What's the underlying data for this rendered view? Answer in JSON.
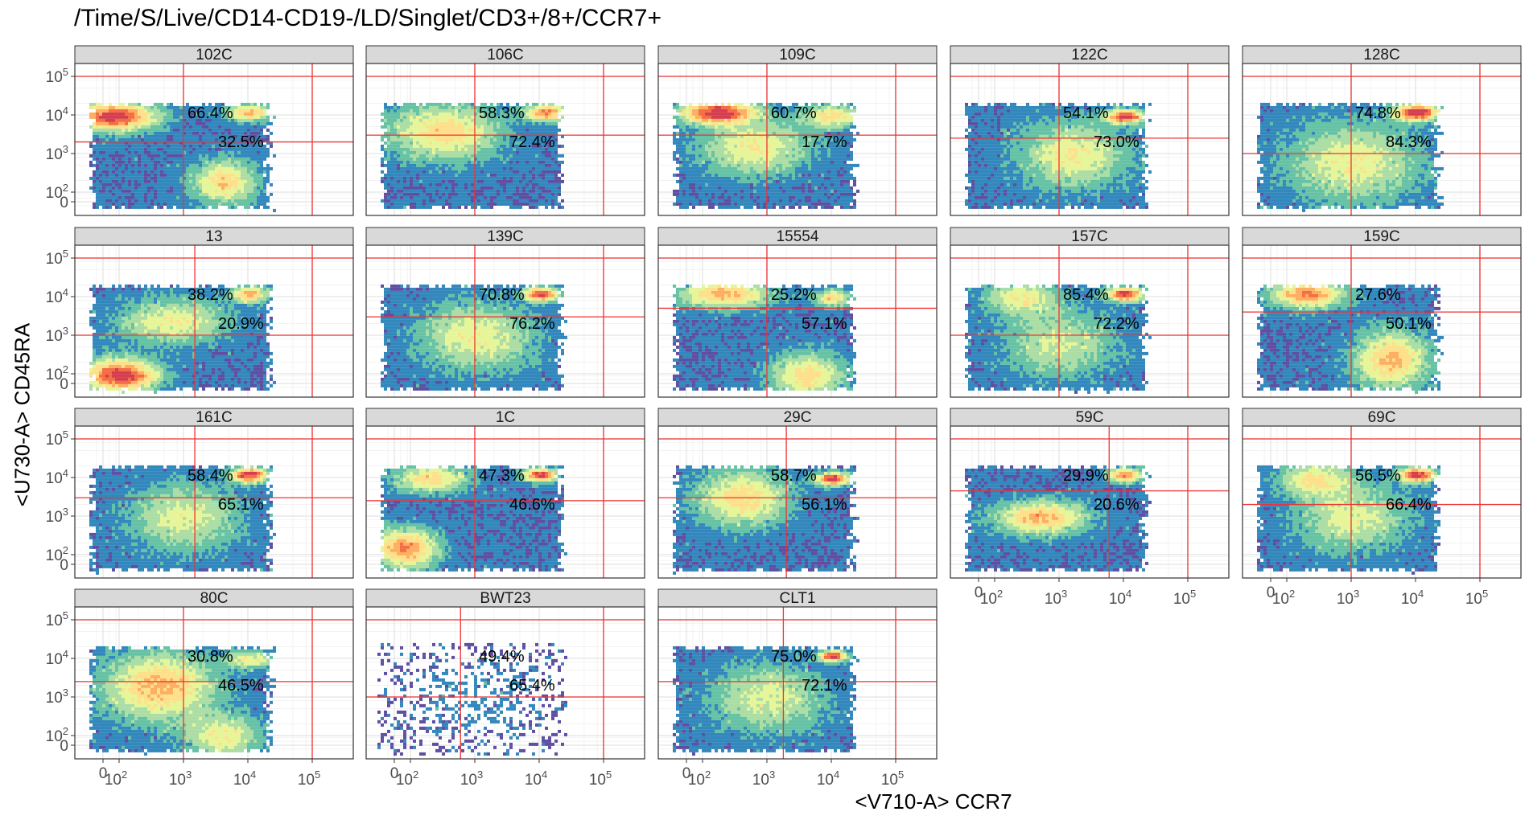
{
  "chart_data": {
    "type": "heatmap",
    "subtype": "faceted flow-cytometry density scatter with quadrant gates",
    "title": "/Time/S/Live/CD14-CD19-/LD/Singlet/CD3+/8+/CCR7+",
    "xlabel": "<V710-A> CCR7",
    "ylabel": "<U730-A> CD45RA",
    "x_scale": "biexponential",
    "y_scale": "biexponential",
    "x_ticks": [
      "0",
      "10^2",
      "10^3",
      "10^4",
      "10^5"
    ],
    "y_ticks": [
      "0",
      "10^2",
      "10^3",
      "10^4",
      "10^5"
    ],
    "grid": true,
    "strip_color": "#d9d9d9",
    "gate_color": "#ee3333",
    "colormap": [
      "#5e4fa2",
      "#3288bd",
      "#66c2a5",
      "#abdda4",
      "#e6f598",
      "#fee08b",
      "#fdae61",
      "#f46d43",
      "#d53e4f"
    ],
    "panels": [
      {
        "name": "102C",
        "pct_upper": "66.4%",
        "pct_lower": "32.5%",
        "gate_x": 1000,
        "gate_y": 2000
      },
      {
        "name": "106C",
        "pct_upper": "58.3%",
        "pct_lower": "72.4%",
        "gate_x": 1000,
        "gate_y": 3000
      },
      {
        "name": "109C",
        "pct_upper": "60.7%",
        "pct_lower": "17.7%",
        "gate_x": 1000,
        "gate_y": 3000
      },
      {
        "name": "122C",
        "pct_upper": "54.1%",
        "pct_lower": "73.0%",
        "gate_x": 1000,
        "gate_y": 2500
      },
      {
        "name": "128C",
        "pct_upper": "74.8%",
        "pct_lower": "84.3%",
        "gate_x": 1000,
        "gate_y": 1000
      },
      {
        "name": "13",
        "pct_upper": "38.2%",
        "pct_lower": "20.9%",
        "gate_x": 1500,
        "gate_y": 1000
      },
      {
        "name": "139C",
        "pct_upper": "70.8%",
        "pct_lower": "76.2%",
        "gate_x": 1000,
        "gate_y": 3000
      },
      {
        "name": "15554",
        "pct_upper": "25.2%",
        "pct_lower": "57.1%",
        "gate_x": 1000,
        "gate_y": 5000
      },
      {
        "name": "157C",
        "pct_upper": "85.4%",
        "pct_lower": "72.2%",
        "gate_x": 1000,
        "gate_y": 1000
      },
      {
        "name": "159C",
        "pct_upper": "27.6%",
        "pct_lower": "50.1%",
        "gate_x": 1000,
        "gate_y": 4000
      },
      {
        "name": "161C",
        "pct_upper": "58.4%",
        "pct_lower": "65.1%",
        "gate_x": 1500,
        "gate_y": 3000
      },
      {
        "name": "1C",
        "pct_upper": "47.3%",
        "pct_lower": "46.6%",
        "gate_x": 1000,
        "gate_y": 2500
      },
      {
        "name": "29C",
        "pct_upper": "58.7%",
        "pct_lower": "56.1%",
        "gate_x": 2000,
        "gate_y": 3000
      },
      {
        "name": "59C",
        "pct_upper": "29.9%",
        "pct_lower": "20.6%",
        "gate_x": 6000,
        "gate_y": 4500
      },
      {
        "name": "69C",
        "pct_upper": "56.5%",
        "pct_lower": "66.4%",
        "gate_x": 1000,
        "gate_y": 2000
      },
      {
        "name": "80C",
        "pct_upper": "30.8%",
        "pct_lower": "46.5%",
        "gate_x": 1000,
        "gate_y": 2500
      },
      {
        "name": "BWT23",
        "pct_upper": "49.4%",
        "pct_lower": "65.4%",
        "gate_x": 600,
        "gate_y": 1000
      },
      {
        "name": "CLT1",
        "pct_upper": "75.0%",
        "pct_lower": "72.1%",
        "gate_x": 1800,
        "gate_y": 2500
      }
    ]
  }
}
